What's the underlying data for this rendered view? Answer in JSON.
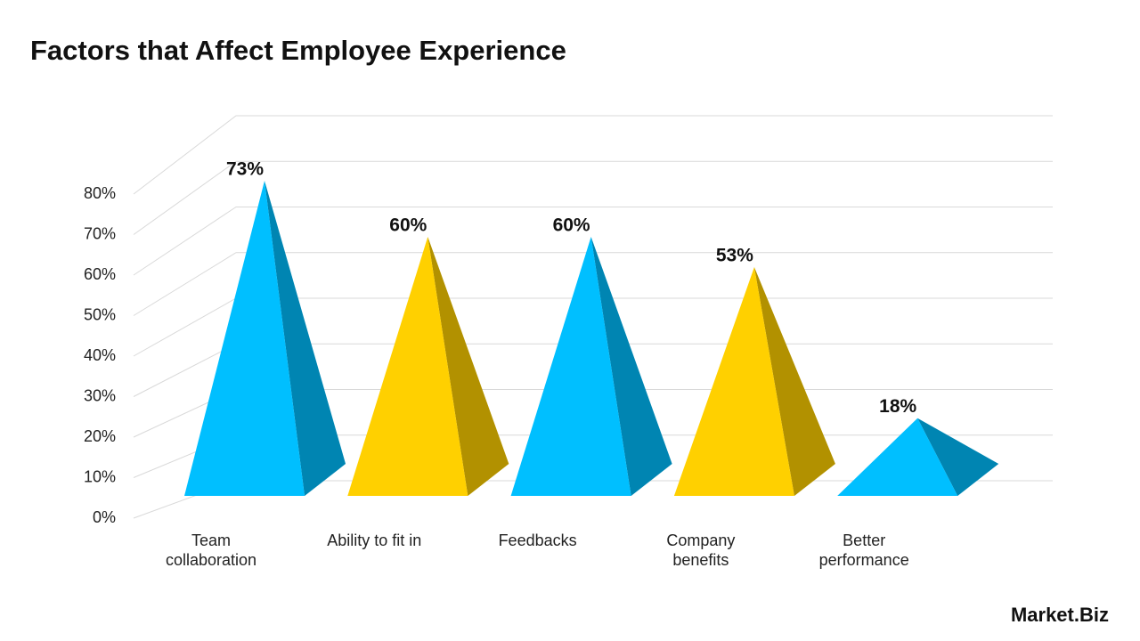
{
  "chart_data": {
    "type": "pyramid",
    "title": "Factors that Affect Employee Experience",
    "categories": [
      "Team collaboration",
      "Ability to fit in",
      "Feedbacks",
      "Company benefits",
      "Better performance"
    ],
    "values": [
      73,
      60,
      60,
      53,
      18
    ],
    "value_labels": [
      "73%",
      "60%",
      "60%",
      "53%",
      "18%"
    ],
    "colors": [
      "#00bfff",
      "#ffd000",
      "#00bfff",
      "#ffd000",
      "#00bfff"
    ],
    "ylim": [
      0,
      80
    ],
    "yticks": [
      {
        "value": 0,
        "label": "0%"
      },
      {
        "value": 10,
        "label": "10%"
      },
      {
        "value": 20,
        "label": "20%"
      },
      {
        "value": 30,
        "label": "30%"
      },
      {
        "value": 40,
        "label": "40%"
      },
      {
        "value": 50,
        "label": "50%"
      },
      {
        "value": 60,
        "label": "60%"
      },
      {
        "value": 70,
        "label": "70%"
      },
      {
        "value": 80,
        "label": "80%"
      }
    ],
    "grid": true
  },
  "brand": "Market.Biz"
}
